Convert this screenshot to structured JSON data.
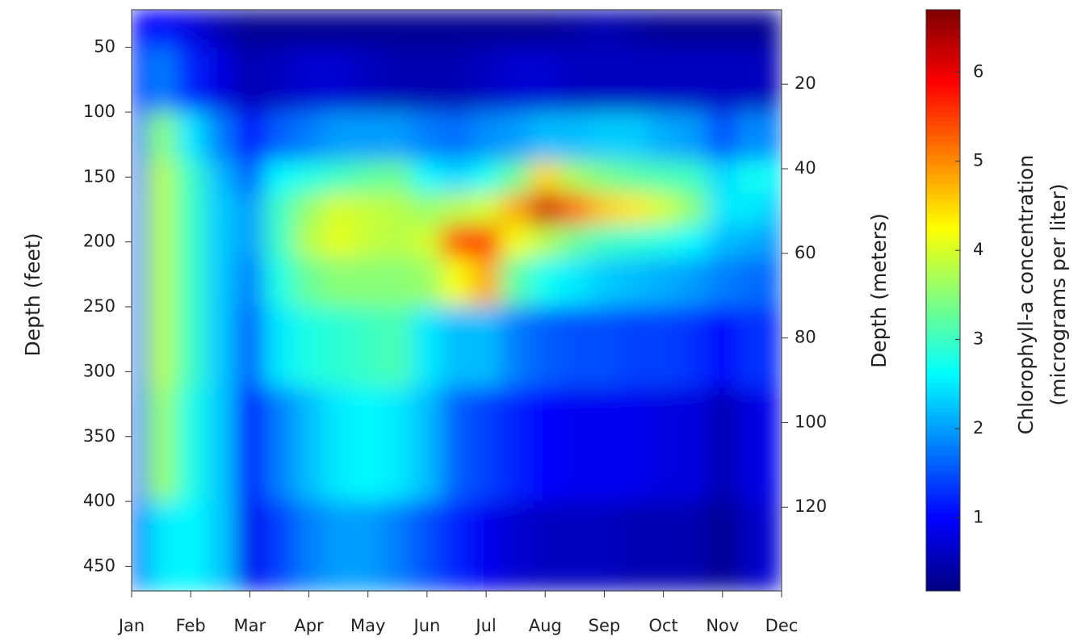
{
  "chart_data": {
    "type": "contour",
    "ylabel": "Depth (feet)",
    "y2label": "Depth (meters)",
    "colorbar_label": [
      "Chlorophyll-a concentration",
      "(micrograms per liter)"
    ],
    "x": [
      0,
      0.5,
      1,
      1.5,
      2,
      2.5,
      3,
      3.5,
      4,
      4.5,
      5,
      5.5,
      6,
      6.5,
      7,
      7.5,
      8,
      8.5,
      9,
      9.5,
      10,
      10.5,
      11
    ],
    "xlim": [
      0,
      11
    ],
    "xticks": [
      {
        "value": 0,
        "label": "Jan"
      },
      {
        "value": 1,
        "label": "Feb"
      },
      {
        "value": 2,
        "label": "Mar"
      },
      {
        "value": 3,
        "label": "Apr"
      },
      {
        "value": 4,
        "label": "May"
      },
      {
        "value": 5,
        "label": "Jun"
      },
      {
        "value": 6,
        "label": "Jul"
      },
      {
        "value": 7,
        "label": "Aug"
      },
      {
        "value": 8,
        "label": "Sep"
      },
      {
        "value": 9,
        "label": "Oct"
      },
      {
        "value": 10,
        "label": "Nov"
      },
      {
        "value": 11,
        "label": "Dec"
      }
    ],
    "y": [
      25,
      75,
      125,
      150,
      175,
      200,
      225,
      275,
      350,
      450
    ],
    "ylim": [
      21,
      469
    ],
    "yticks": [
      50,
      100,
      150,
      200,
      250,
      300,
      350,
      400,
      450
    ],
    "y2lim": [
      2.4,
      139.8
    ],
    "y2ticks": [
      20,
      40,
      60,
      80,
      100,
      120
    ],
    "z": [
      [
        1.0,
        1.2,
        1.5,
        1.6,
        1.7,
        1.7,
        1.7,
        1.7,
        1.6,
        1.4
      ],
      [
        1.0,
        1.8,
        3.5,
        3.8,
        3.8,
        3.8,
        3.8,
        3.8,
        3.6,
        2.5
      ],
      [
        0.8,
        1.2,
        2.5,
        3.0,
        3.0,
        3.0,
        3.0,
        3.0,
        2.8,
        2.6
      ],
      [
        0.5,
        0.8,
        1.8,
        2.2,
        2.3,
        2.3,
        2.3,
        2.3,
        2.3,
        2.3
      ],
      [
        0.3,
        0.5,
        1.0,
        1.6,
        2.0,
        2.0,
        1.8,
        1.6,
        1.0,
        0.9
      ],
      [
        0.3,
        0.6,
        1.6,
        2.6,
        3.0,
        3.0,
        2.8,
        2.5,
        1.8,
        1.4
      ],
      [
        0.3,
        0.7,
        1.8,
        2.8,
        3.6,
        3.8,
        3.3,
        2.8,
        2.2,
        1.8
      ],
      [
        0.3,
        0.7,
        2.0,
        3.0,
        4.0,
        4.1,
        3.5,
        2.9,
        2.5,
        2.0
      ],
      [
        0.3,
        0.6,
        2.0,
        3.2,
        3.9,
        3.9,
        3.5,
        3.0,
        2.6,
        2.0
      ],
      [
        0.3,
        0.5,
        2.0,
        3.3,
        3.8,
        3.8,
        3.5,
        3.1,
        2.5,
        1.8
      ],
      [
        0.3,
        0.5,
        1.8,
        2.6,
        3.6,
        4.0,
        3.6,
        2.5,
        2.2,
        1.5
      ],
      [
        0.3,
        0.5,
        1.7,
        2.4,
        3.8,
        5.4,
        4.2,
        2.2,
        1.6,
        1.2
      ],
      [
        0.3,
        0.6,
        1.9,
        2.7,
        4.0,
        5.6,
        4.8,
        2.2,
        1.4,
        0.9
      ],
      [
        0.3,
        0.7,
        2.0,
        3.3,
        4.8,
        4.2,
        3.2,
        1.8,
        1.2,
        0.7
      ],
      [
        0.3,
        0.7,
        2.2,
        4.5,
        6.2,
        3.8,
        2.7,
        1.6,
        1.0,
        0.6
      ],
      [
        0.4,
        0.6,
        2.2,
        3.7,
        5.2,
        3.3,
        2.5,
        1.5,
        0.9,
        0.6
      ],
      [
        0.5,
        0.6,
        2.3,
        3.4,
        4.6,
        3.0,
        2.3,
        1.5,
        0.9,
        0.6
      ],
      [
        0.4,
        0.6,
        2.3,
        3.2,
        4.4,
        2.9,
        2.2,
        1.4,
        0.9,
        0.5
      ],
      [
        0.3,
        0.6,
        2.1,
        3.1,
        4.0,
        2.8,
        2.1,
        1.4,
        0.8,
        0.5
      ],
      [
        0.3,
        0.6,
        2.0,
        3.0,
        3.5,
        2.6,
        2.0,
        1.3,
        0.8,
        0.5
      ],
      [
        0.3,
        0.6,
        1.5,
        2.4,
        2.5,
        2.2,
        1.8,
        1.0,
        0.5,
        0.3
      ],
      [
        0.3,
        0.6,
        1.9,
        2.7,
        2.5,
        2.1,
        1.7,
        1.3,
        0.8,
        0.6
      ],
      [
        0.3,
        0.5,
        1.8,
        2.6,
        2.2,
        1.9,
        1.6,
        1.2,
        0.9,
        0.8
      ]
    ],
    "clim": [
      0.18,
      6.7
    ],
    "cticks": [
      1,
      2,
      3,
      4,
      5,
      6
    ],
    "colormap": "jet"
  }
}
